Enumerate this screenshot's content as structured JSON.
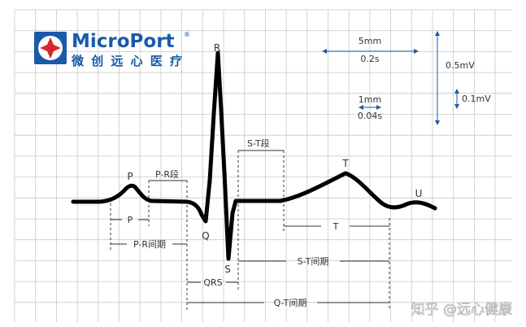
{
  "logo": {
    "brand": "MicroPort",
    "registered_mark": "®",
    "tagline": "微创远心医疗",
    "brand_color": "#1a5aa8",
    "accent_color": "#d92530"
  },
  "colors": {
    "grid": "#c8c8c8",
    "trace": "#000000",
    "scale_arrows": "#1a5aa8",
    "text": "#333333"
  },
  "scale_legend": {
    "big_box_width": "5mm",
    "big_box_time": "0.2s",
    "small_box_width": "1mm",
    "small_box_time": "0.04s",
    "big_box_voltage": "0.5mV",
    "small_box_voltage": "0.1mV"
  },
  "waves": {
    "p": "P",
    "q": "Q",
    "r": "R",
    "s": "S",
    "t": "T",
    "u": "U"
  },
  "segments": {
    "pr_segment": "P-R段",
    "st_segment": "S-T段"
  },
  "intervals": {
    "p_duration": "P",
    "pr_interval": "P-R间期",
    "qrs_duration": "QRS",
    "st_interval": "S-T间期",
    "t_duration": "T",
    "qt_interval": "Q-T间期"
  },
  "watermark": "知乎 @远心健康"
}
